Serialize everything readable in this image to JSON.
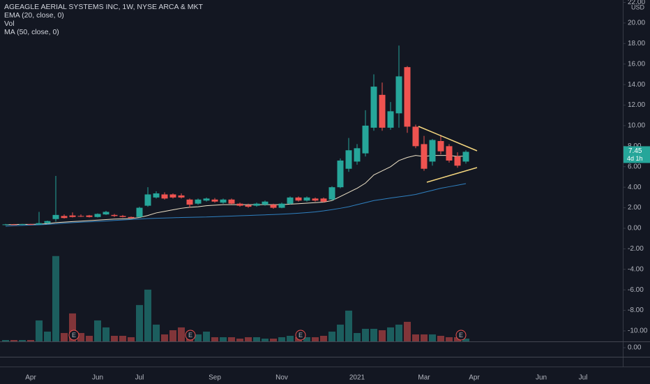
{
  "chart_data": {
    "type": "candlestick",
    "title": "AGEAGLE AERIAL SYSTEMS INC, 1W, NYSE ARCA & MKT",
    "indicators": [
      "EMA (20, close, 0)",
      "Vol",
      "MA (50, close, 0)"
    ],
    "currency": "USD",
    "last_price": 7.45,
    "countdown": "4d 1h",
    "earnings_markers": [
      "E",
      "E",
      "E",
      "E"
    ],
    "categories": [
      null,
      null,
      null,
      "Apr",
      null,
      null,
      null,
      null,
      null,
      null,
      null,
      "Jun",
      null,
      null,
      null,
      null,
      "Jul",
      null,
      null,
      null,
      null,
      null,
      null,
      null,
      null,
      "Sep",
      null,
      null,
      null,
      null,
      null,
      null,
      null,
      "Nov",
      null,
      null,
      null,
      null,
      null,
      null,
      null,
      null,
      "2021",
      null,
      null,
      null,
      null,
      null,
      null,
      null,
      "Mar",
      null,
      null,
      null,
      null,
      null,
      "Apr",
      null,
      null,
      null,
      null,
      null,
      null,
      null,
      "Jun",
      null,
      null,
      null,
      null,
      "Jul",
      null,
      null,
      null,
      null,
      null
    ],
    "open": [
      0.33,
      0.38,
      0.36,
      0.4,
      0.38,
      0.5,
      0.9,
      1.2,
      1.25,
      1.2,
      1.25,
      1.1,
      1.35,
      1.3,
      1.2,
      1.1,
      1.1,
      2.2,
      3.0,
      3.3,
      3.3,
      3.2,
      2.8,
      2.4,
      2.7,
      2.8,
      2.5,
      2.8,
      2.4,
      2.25,
      2.2,
      2.3,
      2.3,
      2.0,
      2.4,
      3.0,
      2.7,
      2.9,
      2.9,
      2.8,
      4.0,
      5.8,
      6.5,
      7.3,
      9.8,
      13.0,
      9.8,
      11.2,
      15.7,
      9.9,
      8.2,
      6.5,
      8.5,
      8.0,
      7.0,
      6.5,
      null,
      null,
      null,
      null,
      null,
      null,
      null,
      null,
      null,
      null,
      null,
      null,
      null,
      null,
      null,
      null,
      null,
      null,
      null
    ],
    "high": [
      0.42,
      0.42,
      0.42,
      0.43,
      1.6,
      0.75,
      5.1,
      1.35,
      1.55,
      1.35,
      1.3,
      1.45,
      1.7,
      1.4,
      1.3,
      1.15,
      2.1,
      4.0,
      3.6,
      3.5,
      3.4,
      3.4,
      2.9,
      2.9,
      3.0,
      2.95,
      2.9,
      2.9,
      2.5,
      2.4,
      2.5,
      2.7,
      2.4,
      2.5,
      3.1,
      3.1,
      3.1,
      3.0,
      3.0,
      4.1,
      6.8,
      8.8,
      8.2,
      11.5,
      15.0,
      14.2,
      12.3,
      17.8,
      15.8,
      10.1,
      9.0,
      8.7,
      9.1,
      8.2,
      7.4,
      7.6,
      null,
      null,
      null,
      null,
      null,
      null,
      null,
      null,
      null,
      null,
      null,
      null,
      null,
      null,
      null,
      null,
      null,
      null,
      null
    ],
    "low": [
      0.3,
      0.33,
      0.32,
      0.33,
      0.35,
      0.45,
      0.65,
      0.95,
      1.05,
      1.1,
      1.05,
      1.05,
      1.3,
      1.1,
      1.05,
      0.95,
      1.05,
      2.1,
      2.9,
      2.8,
      2.9,
      2.9,
      2.0,
      2.3,
      2.6,
      2.5,
      2.4,
      2.3,
      2.1,
      2.0,
      2.1,
      2.2,
      1.9,
      1.95,
      2.3,
      2.6,
      2.6,
      2.6,
      2.5,
      2.7,
      3.9,
      5.5,
      6.2,
      7.0,
      9.5,
      9.5,
      9.6,
      9.8,
      9.3,
      7.8,
      5.6,
      6.1,
      7.2,
      6.4,
      5.9,
      6.3,
      null,
      null,
      null,
      null,
      null,
      null,
      null,
      null,
      null,
      null,
      null,
      null,
      null,
      null,
      null,
      null,
      null,
      null,
      null
    ],
    "close": [
      0.38,
      0.36,
      0.4,
      0.35,
      0.5,
      0.7,
      1.3,
      1.0,
      1.1,
      1.15,
      1.1,
      1.4,
      1.6,
      1.2,
      1.1,
      1.0,
      2.0,
      3.3,
      3.4,
      2.9,
      3.0,
      3.0,
      2.3,
      2.8,
      2.9,
      2.6,
      2.8,
      2.4,
      2.2,
      2.1,
      2.4,
      2.6,
      2.0,
      2.4,
      3.0,
      2.7,
      3.0,
      2.7,
      2.6,
      4.0,
      6.6,
      7.6,
      7.8,
      10.0,
      13.8,
      9.8,
      11.4,
      14.8,
      9.9,
      8.0,
      5.8,
      8.6,
      7.5,
      6.6,
      6.1,
      7.45,
      null,
      null,
      null,
      null,
      null,
      null,
      null,
      null,
      null,
      null,
      null,
      null,
      null,
      null,
      null,
      null,
      null,
      null,
      null
    ],
    "volume": [
      1,
      1,
      1,
      1,
      15,
      7,
      61,
      6,
      20,
      6,
      4,
      15,
      10,
      4,
      4,
      3,
      26,
      37,
      12,
      5,
      8,
      10,
      7,
      5,
      7,
      3,
      3,
      3,
      2,
      3,
      3,
      2,
      2,
      3,
      4,
      3,
      3,
      3,
      4,
      7,
      12,
      22,
      6,
      9,
      9,
      8,
      10,
      12,
      14,
      5,
      5,
      5,
      4,
      3,
      3,
      2,
      null,
      null,
      null,
      null,
      null,
      null,
      null,
      null,
      null,
      null,
      null,
      null,
      null,
      null,
      null,
      null,
      null,
      null,
      null
    ],
    "vlim": [
      0,
      244
    ],
    "series": [
      {
        "name": "EMA (20, close, 0)",
        "color": "#efe3c8",
        "values": [
          0.35,
          0.37,
          0.38,
          0.38,
          0.4,
          0.45,
          0.55,
          0.6,
          0.65,
          0.7,
          0.75,
          0.8,
          0.85,
          0.9,
          0.92,
          0.95,
          1.05,
          1.25,
          1.5,
          1.65,
          1.8,
          1.95,
          2.05,
          2.1,
          2.2,
          2.25,
          2.3,
          2.3,
          2.3,
          2.3,
          2.3,
          2.3,
          2.3,
          2.3,
          2.35,
          2.4,
          2.45,
          2.5,
          2.55,
          2.7,
          3.1,
          3.5,
          3.9,
          4.4,
          5.2,
          5.6,
          6.0,
          6.6,
          6.9,
          7.1,
          7.0,
          7.1,
          7.1,
          7.1,
          7.0,
          7.05,
          null,
          null,
          null,
          null,
          null,
          null,
          null,
          null,
          null,
          null,
          null,
          null,
          null,
          null,
          null,
          null,
          null,
          null,
          null
        ]
      },
      {
        "name": "MA (50, close, 0)",
        "color": "#2f80c0",
        "values": [
          0.2,
          0.25,
          0.28,
          0.31,
          0.34,
          0.38,
          0.43,
          0.5,
          0.55,
          0.59,
          0.63,
          0.67,
          0.71,
          0.76,
          0.81,
          0.86,
          0.9,
          0.95,
          0.98,
          1.0,
          1.03,
          1.05,
          1.07,
          1.09,
          1.1,
          1.13,
          1.16,
          1.19,
          1.22,
          1.25,
          1.28,
          1.31,
          1.34,
          1.38,
          1.42,
          1.47,
          1.53,
          1.6,
          1.7,
          1.82,
          1.95,
          2.1,
          2.3,
          2.5,
          2.7,
          2.82,
          2.95,
          3.06,
          3.17,
          3.3,
          3.5,
          3.7,
          3.9,
          4.05,
          4.2,
          4.35,
          null,
          null,
          null,
          null,
          null,
          null,
          null,
          null,
          null,
          null,
          null,
          null,
          null,
          null,
          null,
          null,
          null,
          null,
          null
        ]
      }
    ],
    "up_color": "#26a69a",
    "down_color": "#ef5350",
    "ylim": [
      -11.02,
      22.24
    ],
    "yticks": [
      {
        "value": 22,
        "label": "22.00"
      },
      {
        "value": 20,
        "label": "20.00"
      },
      {
        "value": 18,
        "label": "18.00"
      },
      {
        "value": 16,
        "label": "16.00"
      },
      {
        "value": 14,
        "label": "14.00"
      },
      {
        "value": 12,
        "label": "12.00"
      },
      {
        "value": 10,
        "label": "10.00"
      },
      {
        "value": 8,
        "label": "8.00"
      },
      {
        "value": 6,
        "label": "6.00"
      },
      {
        "value": 4,
        "label": "4.00"
      },
      {
        "value": 2,
        "label": "2.00"
      },
      {
        "value": 0,
        "label": "0.00"
      },
      {
        "value": -2,
        "label": "-2.00"
      },
      {
        "value": -4,
        "label": "-4.00"
      },
      {
        "value": -6,
        "label": "-6.00"
      },
      {
        "value": -8,
        "label": "-8.00"
      },
      {
        "value": -10,
        "label": "-10.00"
      }
    ],
    "pane2_yticks": [
      {
        "value": 0,
        "label": "0.00"
      }
    ],
    "grid": false
  }
}
